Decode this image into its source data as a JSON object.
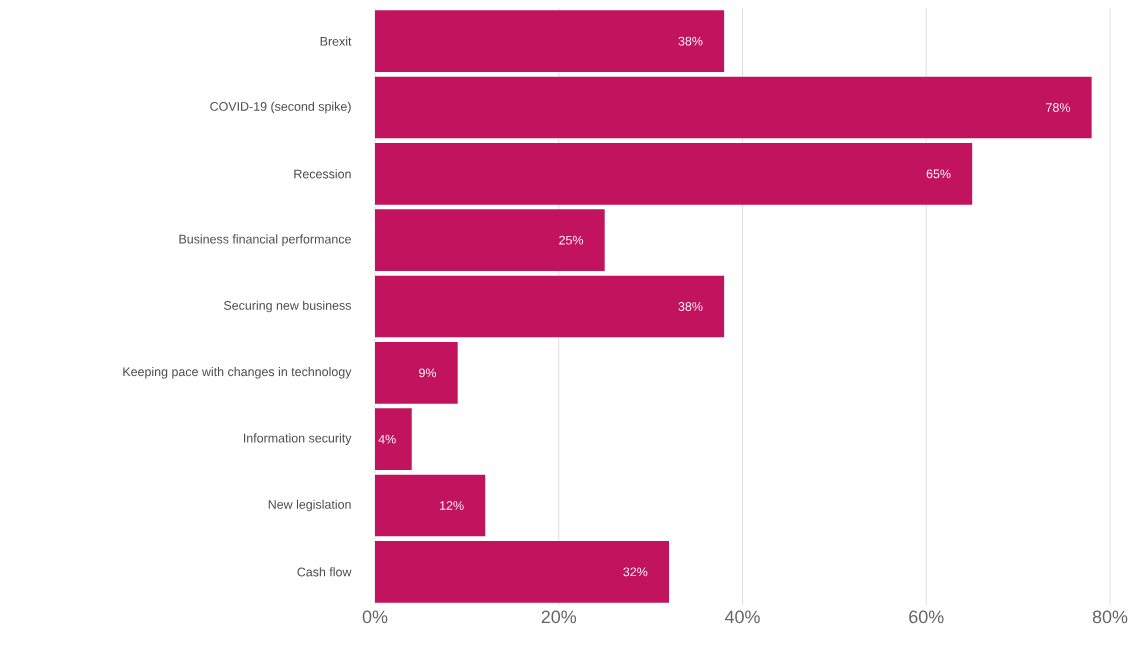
{
  "chart_data": {
    "type": "bar",
    "orientation": "horizontal",
    "categories": [
      "Brexit",
      "COVID-19 (second spike)",
      "Recession",
      "Business financial performance",
      "Securing new business",
      "Keeping pace with changes in technology",
      "Information security",
      "New legislation",
      "Cash flow"
    ],
    "values": [
      38,
      78,
      65,
      25,
      38,
      9,
      4,
      12,
      32
    ],
    "value_labels": [
      "38%",
      "78%",
      "65%",
      "25%",
      "38%",
      "9%",
      "4%",
      "12%",
      "32%"
    ],
    "color": "#c2135f",
    "xlim": [
      0,
      80
    ],
    "xticks": [
      {
        "value": 0,
        "label": "0%"
      },
      {
        "value": 20,
        "label": "20%"
      },
      {
        "value": 40,
        "label": "40%"
      },
      {
        "value": 60,
        "label": "60%"
      },
      {
        "value": 80,
        "label": "80%"
      }
    ],
    "grid": "x"
  }
}
